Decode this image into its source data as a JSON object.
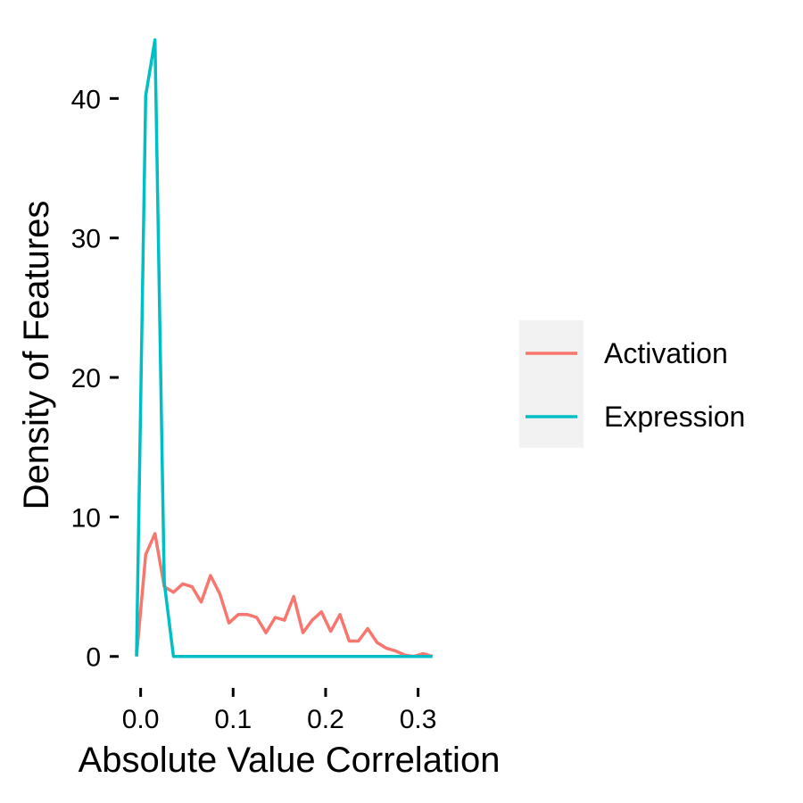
{
  "chart_data": {
    "type": "line",
    "title": "",
    "xlabel": "Absolute Value Correlation",
    "ylabel": "Density of Features",
    "xlim": [
      -0.017,
      0.338
    ],
    "ylim": [
      -2,
      44.5
    ],
    "x_ticks": [
      0.0,
      0.1,
      0.2,
      0.3
    ],
    "x_tick_labels": [
      "0.0",
      "0.1",
      "0.2",
      "0.3"
    ],
    "y_ticks": [
      0,
      10,
      20,
      30,
      40
    ],
    "y_tick_labels": [
      "0",
      "10",
      "20",
      "30",
      "40"
    ],
    "grid": false,
    "legend_position": "right",
    "series": [
      {
        "name": "Activation",
        "color": "#F8766D",
        "points": [
          [
            -0.0045,
            0.0
          ],
          [
            0.0055,
            7.3
          ],
          [
            0.0155,
            8.8
          ],
          [
            0.0255,
            5.0
          ],
          [
            0.0355,
            4.6
          ],
          [
            0.0455,
            5.2
          ],
          [
            0.0555,
            5.0
          ],
          [
            0.0655,
            3.9
          ],
          [
            0.0755,
            5.8
          ],
          [
            0.0855,
            4.5
          ],
          [
            0.0955,
            2.4
          ],
          [
            0.1055,
            3.0
          ],
          [
            0.1155,
            3.0
          ],
          [
            0.1255,
            2.8
          ],
          [
            0.1355,
            1.7
          ],
          [
            0.1455,
            2.8
          ],
          [
            0.1555,
            2.6
          ],
          [
            0.1655,
            4.3
          ],
          [
            0.1755,
            1.7
          ],
          [
            0.1855,
            2.6
          ],
          [
            0.1955,
            3.2
          ],
          [
            0.2055,
            1.8
          ],
          [
            0.2155,
            3.0
          ],
          [
            0.2255,
            1.1
          ],
          [
            0.2355,
            1.1
          ],
          [
            0.2455,
            2.0
          ],
          [
            0.2555,
            1.0
          ],
          [
            0.2655,
            0.6
          ],
          [
            0.2755,
            0.4
          ],
          [
            0.2855,
            0.1
          ],
          [
            0.2955,
            0.0
          ],
          [
            0.3055,
            0.2
          ],
          [
            0.3155,
            0.0
          ]
        ]
      },
      {
        "name": "Expression",
        "color": "#00BFC4",
        "points": [
          [
            -0.0045,
            0.0
          ],
          [
            0.0055,
            40.2
          ],
          [
            0.0155,
            44.2
          ],
          [
            0.0255,
            5.3
          ],
          [
            0.0355,
            0.0
          ],
          [
            0.0455,
            0.0
          ],
          [
            0.0555,
            0.0
          ],
          [
            0.0655,
            0.0
          ],
          [
            0.0755,
            0.0
          ],
          [
            0.0855,
            0.0
          ],
          [
            0.0955,
            0.0
          ],
          [
            0.1055,
            0.0
          ],
          [
            0.1155,
            0.0
          ],
          [
            0.1255,
            0.0
          ],
          [
            0.1355,
            0.0
          ],
          [
            0.1455,
            0.0
          ],
          [
            0.1555,
            0.0
          ],
          [
            0.1655,
            0.0
          ],
          [
            0.1755,
            0.0
          ],
          [
            0.1855,
            0.0
          ],
          [
            0.1955,
            0.0
          ],
          [
            0.2055,
            0.0
          ],
          [
            0.2155,
            0.0
          ],
          [
            0.2255,
            0.0
          ],
          [
            0.2355,
            0.0
          ],
          [
            0.2455,
            0.0
          ],
          [
            0.2555,
            0.0
          ],
          [
            0.2655,
            0.0
          ],
          [
            0.2755,
            0.0
          ],
          [
            0.2855,
            0.0
          ],
          [
            0.2955,
            0.0
          ],
          [
            0.3055,
            0.0
          ],
          [
            0.3155,
            0.0
          ]
        ]
      }
    ],
    "legend": {
      "background": "#F2F2F2",
      "items": [
        {
          "label": "Activation",
          "color": "#F8766D"
        },
        {
          "label": "Expression",
          "color": "#00BFC4"
        }
      ]
    }
  }
}
